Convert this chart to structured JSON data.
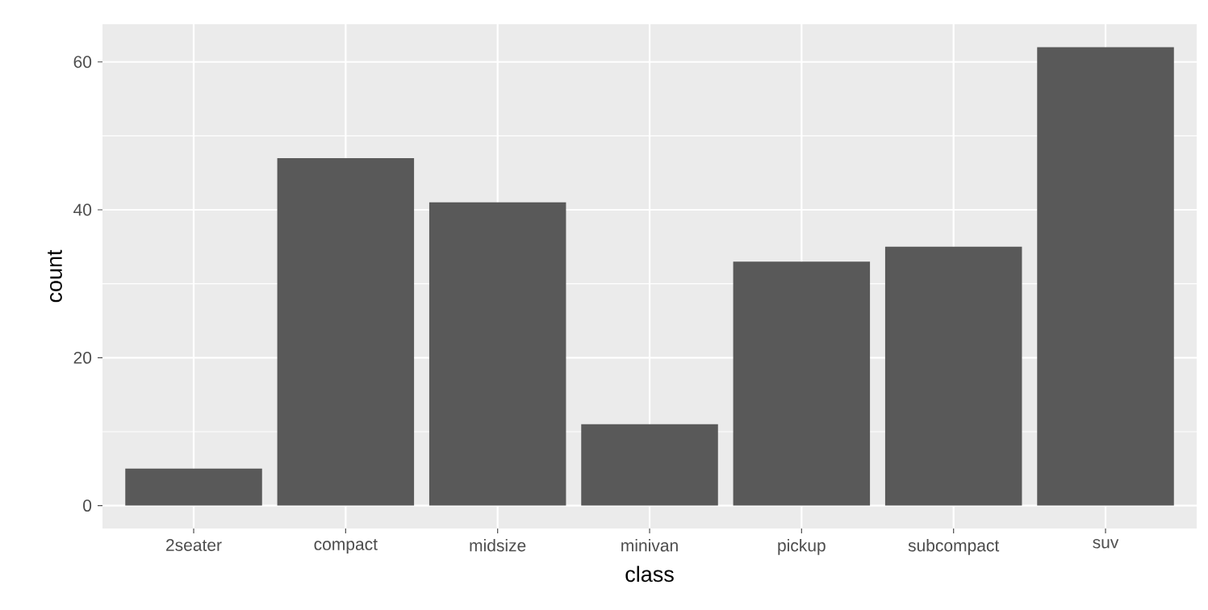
{
  "chart_data": {
    "type": "bar",
    "xlabel": "class",
    "ylabel": "count",
    "categories": [
      "2seater",
      "compact",
      "midsize",
      "minivan",
      "pickup",
      "subcompact",
      "suv"
    ],
    "values": [
      5,
      47,
      41,
      11,
      33,
      35,
      62
    ],
    "color": "#595959",
    "ylim": [
      -3.1,
      65.1
    ],
    "yticks": [
      0,
      20,
      40,
      60
    ],
    "grid": true
  }
}
